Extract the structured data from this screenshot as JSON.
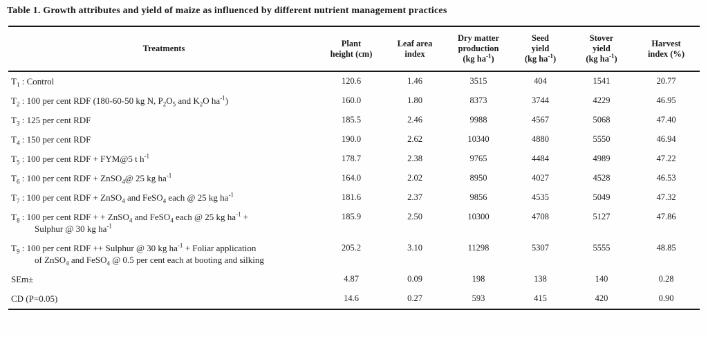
{
  "caption": "Table 1. Growth attributes and yield of maize as influenced by different nutrient management practices",
  "table": {
    "columns": [
      "Treatments",
      "Plant\nheight (cm)",
      "Leaf area\nindex",
      "Dry matter\nproduction\n(kg ha^-1^)",
      "Seed\nyield\n(kg ha^-1^)",
      "Stover\nyield\n(kg ha^-1^)",
      "Harvest\nindex (%)"
    ],
    "rows": [
      {
        "treatment": "T~1~ : Control",
        "values": [
          "120.6",
          "1.46",
          "3515",
          "404",
          "1541",
          "20.77"
        ]
      },
      {
        "treatment": "T~2~ : 100 per cent RDF (180-60-50 kg N, P~2~O~5~ and K~2~O ha^-1^)",
        "values": [
          "160.0",
          "1.80",
          "8373",
          "3744",
          "4229",
          "46.95"
        ]
      },
      {
        "treatment": "T~3~ : 125 per cent RDF",
        "values": [
          "185.5",
          "2.46",
          "9988",
          "4567",
          "5068",
          "47.40"
        ]
      },
      {
        "treatment": "T~4~ : 150 per cent RDF",
        "values": [
          "190.0",
          "2.62",
          "10340",
          "4880",
          "5550",
          "46.94"
        ]
      },
      {
        "treatment": "T~5~ : 100 per cent RDF + FYM@5 t h^-1^",
        "values": [
          "178.7",
          "2.38",
          "9765",
          "4484",
          "4989",
          "47.22"
        ]
      },
      {
        "treatment": "T~6~ : 100 per cent RDF + ZnSO~4~@ 25 kg ha^-1^",
        "values": [
          "164.0",
          "2.02",
          "8950",
          "4027",
          "4528",
          "46.53"
        ]
      },
      {
        "treatment": "T~7~ : 100 per cent RDF + ZnSO~4~ and FeSO~4~ each @ 25 kg ha^-1^",
        "values": [
          "181.6",
          "2.37",
          "9856",
          "4535",
          "5049",
          "47.32"
        ]
      },
      {
        "treatment": "T~8~ : 100 per cent RDF + + ZnSO~4~ and FeSO~4~ each @ 25 kg ha^-1^ +\nSulphur @ 30 kg ha^-1^",
        "values": [
          "185.9",
          "2.50",
          "10300",
          "4708",
          "5127",
          "47.86"
        ]
      },
      {
        "treatment": "T~9~ : 100 per cent RDF ++ Sulphur @ 30 kg ha^-1^ + Foliar application\nof ZnSO~4~ and FeSO~4~ @ 0.5 per cent each at booting and silking",
        "values": [
          "205.2",
          "3.10",
          "11298",
          "5307",
          "5555",
          "48.85"
        ]
      },
      {
        "treatment": "SEm±",
        "values": [
          "4.87",
          "0.09",
          "198",
          "138",
          "140",
          "0.28"
        ]
      },
      {
        "treatment": "CD (P=0.05)",
        "values": [
          "14.6",
          "0.27",
          "593",
          "415",
          "420",
          "0.90"
        ]
      }
    ]
  },
  "chart_data": {
    "type": "table",
    "title": "Table 1. Growth attributes and yield of maize as influenced by different nutrient management practices",
    "columns": [
      "Treatments",
      "Plant height (cm)",
      "Leaf area index",
      "Dry matter production (kg ha-1)",
      "Seed yield (kg ha-1)",
      "Stover yield (kg ha-1)",
      "Harvest index (%)"
    ],
    "rows": [
      [
        "T1 : Control",
        120.6,
        1.46,
        3515,
        404,
        1541,
        20.77
      ],
      [
        "T2 : 100 per cent RDF (180-60-50 kg N, P2O5 and K2O ha-1)",
        160.0,
        1.8,
        8373,
        3744,
        4229,
        46.95
      ],
      [
        "T3 : 125 per cent RDF",
        185.5,
        2.46,
        9988,
        4567,
        5068,
        47.4
      ],
      [
        "T4 : 150 per cent RDF",
        190.0,
        2.62,
        10340,
        4880,
        5550,
        46.94
      ],
      [
        "T5 : 100 per cent RDF + FYM@5 t h-1",
        178.7,
        2.38,
        9765,
        4484,
        4989,
        47.22
      ],
      [
        "T6 : 100 per cent RDF + ZnSO4@ 25 kg ha-1",
        164.0,
        2.02,
        8950,
        4027,
        4528,
        46.53
      ],
      [
        "T7 : 100 per cent RDF + ZnSO4 and FeSO4 each @ 25 kg ha-1",
        181.6,
        2.37,
        9856,
        4535,
        5049,
        47.32
      ],
      [
        "T8 : 100 per cent RDF + + ZnSO4 and FeSO4 each @ 25 kg ha-1 + Sulphur @ 30 kg ha-1",
        185.9,
        2.5,
        10300,
        4708,
        5127,
        47.86
      ],
      [
        "T9 : 100 per cent RDF ++ Sulphur @ 30 kg ha-1 + Foliar application of ZnSO4 and FeSO4 @ 0.5 per cent each at booting and silking",
        205.2,
        3.1,
        11298,
        5307,
        5555,
        48.85
      ],
      [
        "SEm±",
        4.87,
        0.09,
        198,
        138,
        140,
        0.28
      ],
      [
        "CD (P=0.05)",
        14.6,
        0.27,
        593,
        415,
        420,
        0.9
      ]
    ]
  }
}
